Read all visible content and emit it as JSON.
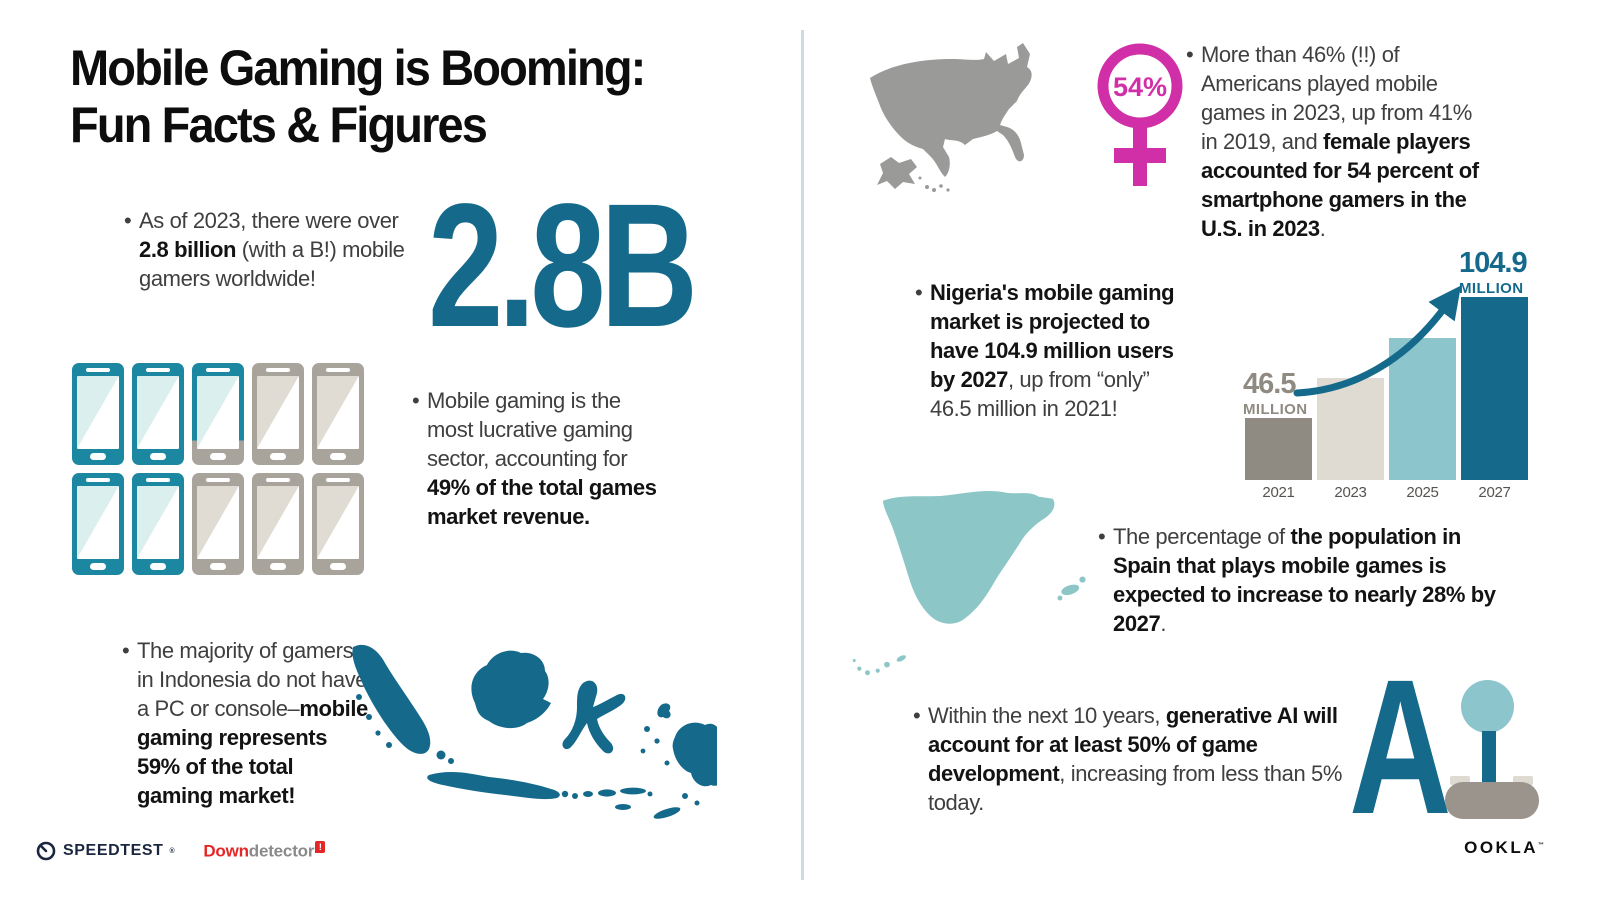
{
  "title": {
    "line1": "Mobile Gaming is Booming:",
    "line2": "Fun Facts & Figures"
  },
  "big_stat": {
    "value": "2.8B"
  },
  "facts": {
    "gamers": {
      "pre": "As of 2023, there were over ",
      "bold": "2.8 billion",
      "post": " (with a B!) mobile gamers worldwide!"
    },
    "revenue": {
      "pre": "Mobile gaming is the most lucrative gaming sector, accounting for ",
      "bold": "49% of the total games market revenue.",
      "post": ""
    },
    "indonesia": {
      "pre": "The majority of gamers in Indonesia do not have a PC or console–",
      "bold": "mobile gaming represents 59% of the total gaming market!",
      "post": ""
    },
    "usa": {
      "pre": "More than 46% (!!) of Americans played mobile games in 2023, up from 41% in 2019, and ",
      "bold": "female players accounted for 54 percent of smartphone gamers in the U.S. in 2023",
      "post": "."
    },
    "nigeria": {
      "pre": "",
      "bold": "Nigeria's mobile gaming market is projected to have 104.9 million users by 2027",
      "post": ", up from “only” 46.5 million in 2021!"
    },
    "spain": {
      "pre": "The percentage of ",
      "bold": "the population in Spain that plays mobile games is expected to increase to nearly 28% by 2027",
      "post": "."
    },
    "ai": {
      "pre": "Within the next 10 years, ",
      "bold": "generative AI will account for at least 50% of game development",
      "post": ", increasing from less than 5% today."
    }
  },
  "female_badge": {
    "value": "54%"
  },
  "phone_grid": {
    "states": [
      "teal",
      "teal",
      "teal-split",
      "gray",
      "gray",
      "teal",
      "teal",
      "gray",
      "gray",
      "gray"
    ],
    "meaning": "4.9 of 10 phones filled = 49% of games market revenue"
  },
  "chart_data": {
    "type": "bar",
    "title": "Nigeria mobile gaming market users",
    "categories": [
      "2021",
      "2023",
      "2025",
      "2027"
    ],
    "values": [
      46.5,
      66,
      85,
      104.9
    ],
    "unit": "million users",
    "note": "2023 and 2025 values estimated from bar heights; 2021 and 2027 labeled on chart",
    "bar_colors": [
      "#8f8a82",
      "#dfdbd2",
      "#8cc5cb",
      "#156a8c"
    ],
    "callouts": {
      "low": {
        "value": "46.5",
        "unit": "MILLION"
      },
      "high": {
        "value": "104.9",
        "unit": "MILLION"
      }
    },
    "xlabel": "",
    "ylabel": "",
    "ylim": [
      0,
      110
    ],
    "grid": false,
    "legend": false
  },
  "ai_graphic": {
    "letter": "A"
  },
  "footer": {
    "speedtest": "SPEEDTEST",
    "downdetector_red": "Down",
    "downdetector_gray": "detector",
    "downdetector_badge": "!",
    "ookla": "OOKLA"
  },
  "colors": {
    "dark_teal": "#156a8c",
    "phone_teal": "#1b87a0",
    "light_teal": "#8cc6cc",
    "beige": "#dfdbd2",
    "gray": "#9a9a98",
    "magenta": "#d12fa7",
    "red": "#e32726",
    "body_text": "#3f3f3f",
    "bold_text": "#131313"
  },
  "icons": {
    "speedtest": "gauge-icon",
    "downdetector": "exclamation-badge-icon",
    "female": "female-gender-symbol",
    "growth": "curved-up-arrow",
    "phones": "smartphone-icon",
    "ai": "joystick-icon"
  }
}
